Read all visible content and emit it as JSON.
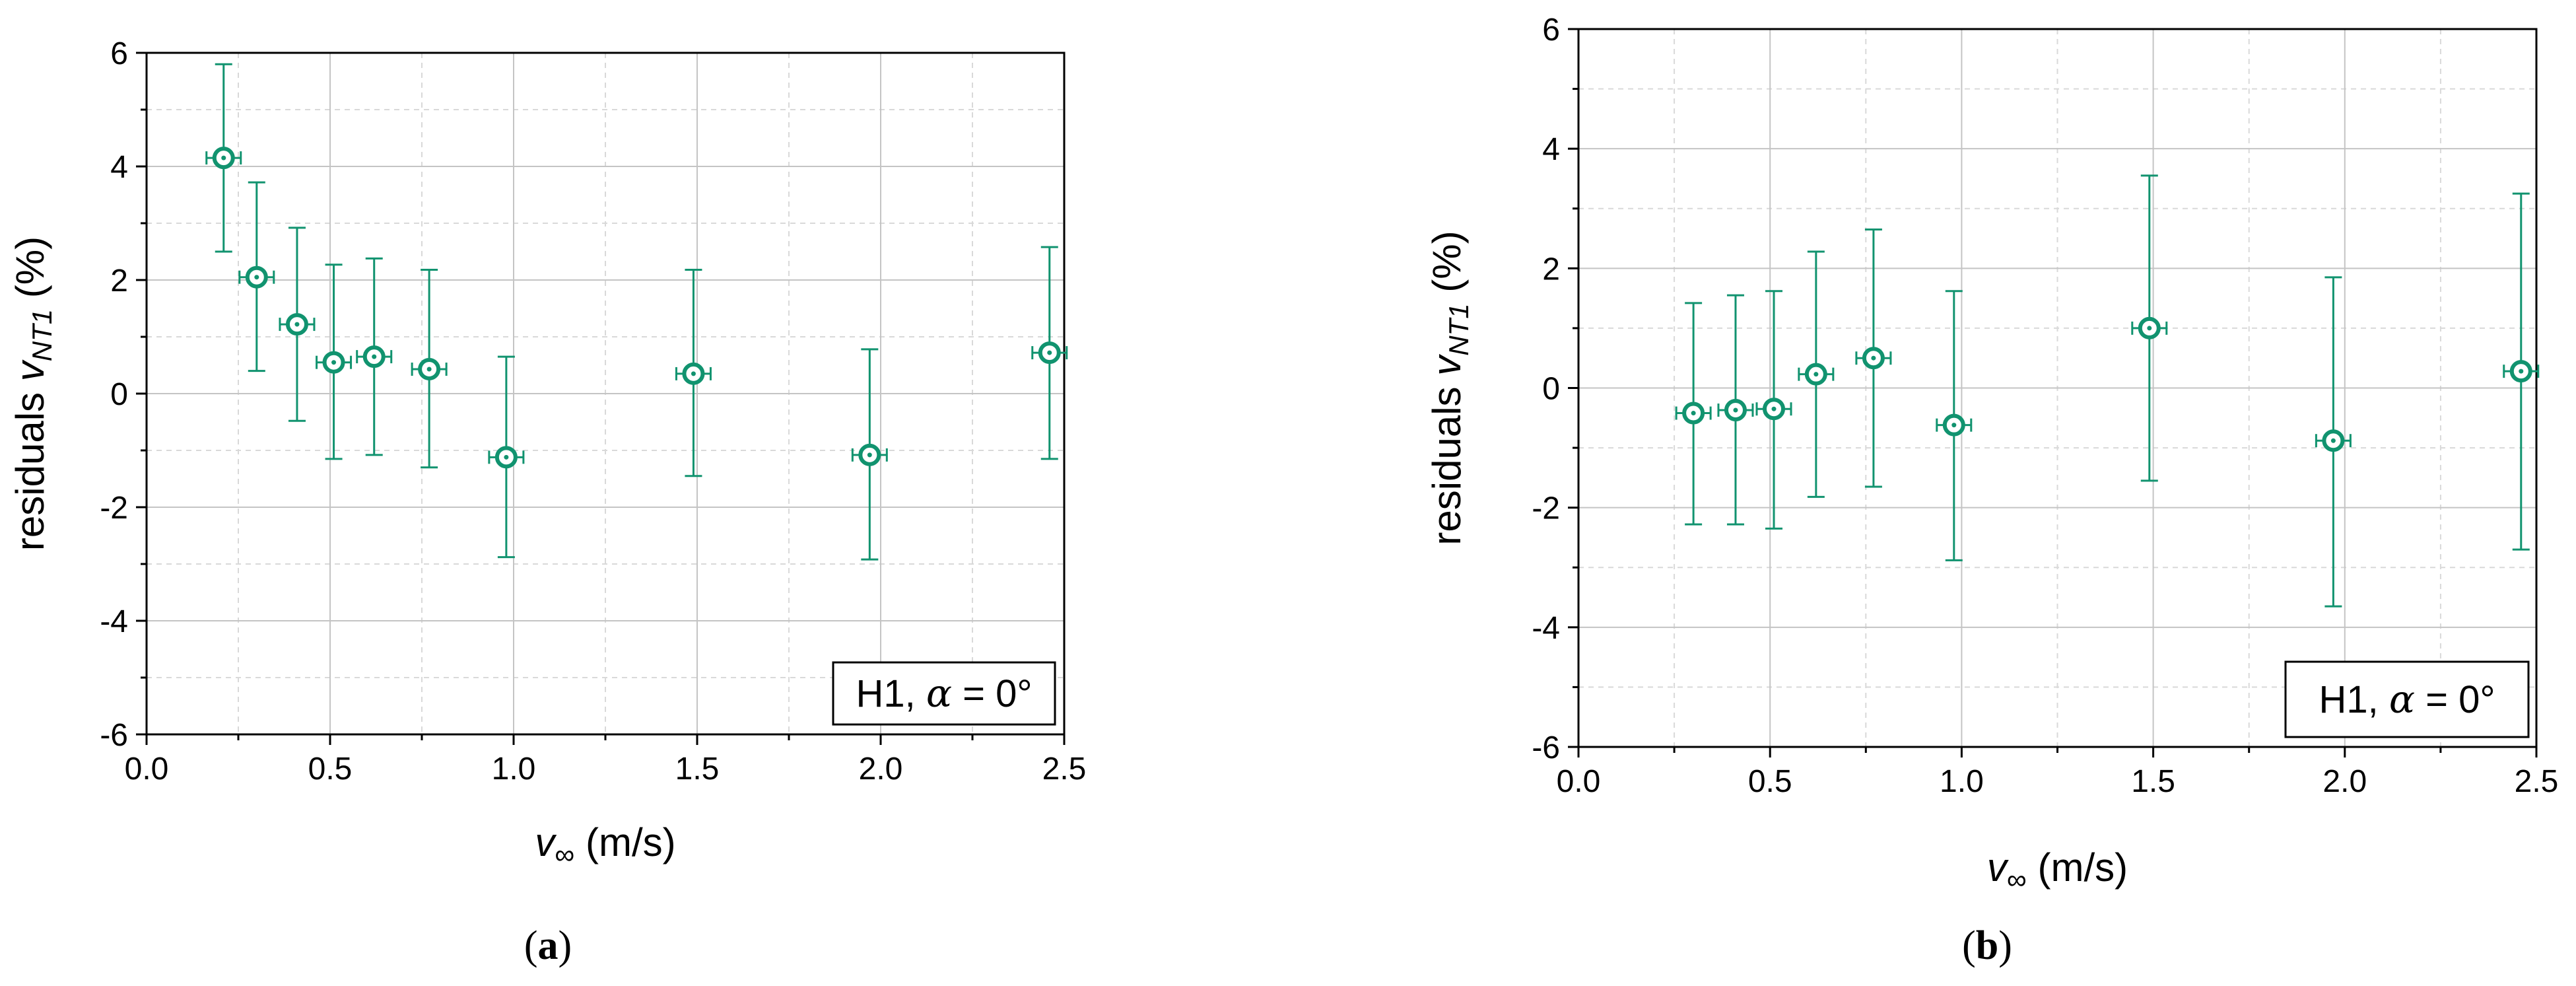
{
  "chart_data": [
    {
      "type": "scatter",
      "panel_label": "a",
      "annotation": {
        "prefix": "H1, ",
        "symbol": "α",
        "suffix": " = 0°"
      },
      "xlabel": {
        "symbol": "v",
        "subscript": "∞",
        "unit": " (m/s)"
      },
      "ylabel": {
        "prefix": "residuals ",
        "symbol": "v",
        "subscript": "NT1",
        "unit": " (%)"
      },
      "xlim": [
        0.0,
        2.5
      ],
      "ylim": [
        -6,
        6
      ],
      "xticks": [
        "0.0",
        "0.5",
        "1.0",
        "1.5",
        "2.0",
        "2.5"
      ],
      "yticks": [
        "-6",
        "-4",
        "-2",
        "0",
        "2",
        "4",
        "6"
      ],
      "grid": true,
      "marker_color": "#11936f",
      "series": [
        {
          "name": "residuals",
          "x": [
            0.21,
            0.3,
            0.41,
            0.51,
            0.62,
            0.77,
            0.98,
            1.49,
            1.97,
            2.46
          ],
          "y": [
            4.15,
            2.05,
            1.22,
            0.55,
            0.65,
            0.43,
            -1.12,
            0.35,
            -1.08,
            0.72
          ],
          "y_err_low": [
            2.5,
            0.4,
            -0.48,
            -1.15,
            -1.08,
            -1.3,
            -2.88,
            -1.45,
            -2.92,
            -1.15
          ],
          "y_err_high": [
            5.8,
            3.72,
            2.92,
            2.27,
            2.38,
            2.18,
            0.65,
            2.18,
            0.78,
            2.58
          ]
        }
      ]
    },
    {
      "type": "scatter",
      "panel_label": "b",
      "annotation": {
        "prefix": "H1, ",
        "symbol": "α",
        "suffix": " = 0°"
      },
      "xlabel": {
        "symbol": "v",
        "subscript": "∞",
        "unit": " (m/s)"
      },
      "ylabel": {
        "prefix": "residuals ",
        "symbol": "v",
        "subscript": "NT1",
        "unit": " (%)"
      },
      "xlim": [
        0.0,
        2.5
      ],
      "ylim": [
        -6,
        6
      ],
      "xticks": [
        "0.0",
        "0.5",
        "1.0",
        "1.5",
        "2.0",
        "2.5"
      ],
      "yticks": [
        "-6",
        "-4",
        "-2",
        "0",
        "2",
        "4",
        "6"
      ],
      "grid": true,
      "marker_color": "#11936f",
      "series": [
        {
          "name": "residuals",
          "x": [
            0.3,
            0.41,
            0.51,
            0.62,
            0.77,
            0.98,
            1.49,
            1.97,
            2.46
          ],
          "y": [
            -0.42,
            -0.37,
            -0.35,
            0.23,
            0.5,
            -0.62,
            1.0,
            -0.88,
            0.28
          ],
          "y_err_low": [
            -2.28,
            -2.28,
            -2.35,
            -1.82,
            -1.65,
            -2.88,
            -1.55,
            -3.65,
            -2.7
          ],
          "y_err_high": [
            1.42,
            1.55,
            1.62,
            2.28,
            2.65,
            1.62,
            3.55,
            1.85,
            3.25
          ]
        }
      ]
    }
  ]
}
